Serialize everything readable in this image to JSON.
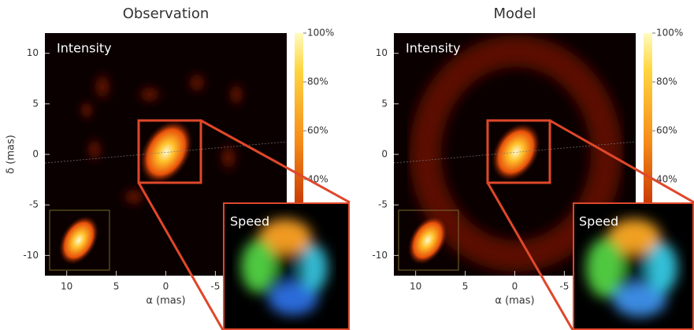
{
  "chart_data": [
    {
      "type": "image",
      "title": "Observation",
      "xlabel": "α (mas)",
      "ylabel": "δ (mas)",
      "xlim": [
        12.2,
        -12.2
      ],
      "xticks": [
        10,
        5,
        0,
        -5
      ],
      "ylim": [
        -12,
        12
      ],
      "yticks": [
        -10,
        -5,
        0,
        5,
        10
      ],
      "colorbar": {
        "lim": [
          0,
          100
        ],
        "ticks": [
          {
            "value": 40,
            "label": "40%"
          },
          {
            "value": 60,
            "label": "60%"
          },
          {
            "value": 80,
            "label": "80%"
          },
          {
            "value": 100,
            "label": "100%"
          }
        ]
      },
      "panel_labels": [
        "Intensity",
        "Speed"
      ]
    },
    {
      "type": "image",
      "title": "Model",
      "xlabel": "α (mas)",
      "xlim": [
        12.2,
        -12.2
      ],
      "xticks": [
        10,
        5,
        0,
        -5
      ],
      "ylim": [
        -12,
        12
      ],
      "yticks": [
        -10,
        -5,
        0,
        5,
        10
      ],
      "colorbar": {
        "lim": [
          0,
          100
        ],
        "ticks": [
          {
            "value": 40,
            "label": "40%"
          },
          {
            "value": 60,
            "label": "60%"
          },
          {
            "value": 80,
            "label": "80%"
          },
          {
            "value": 100,
            "label": "100%"
          }
        ]
      },
      "panel_labels": [
        "Intensity",
        "Speed"
      ]
    }
  ]
}
